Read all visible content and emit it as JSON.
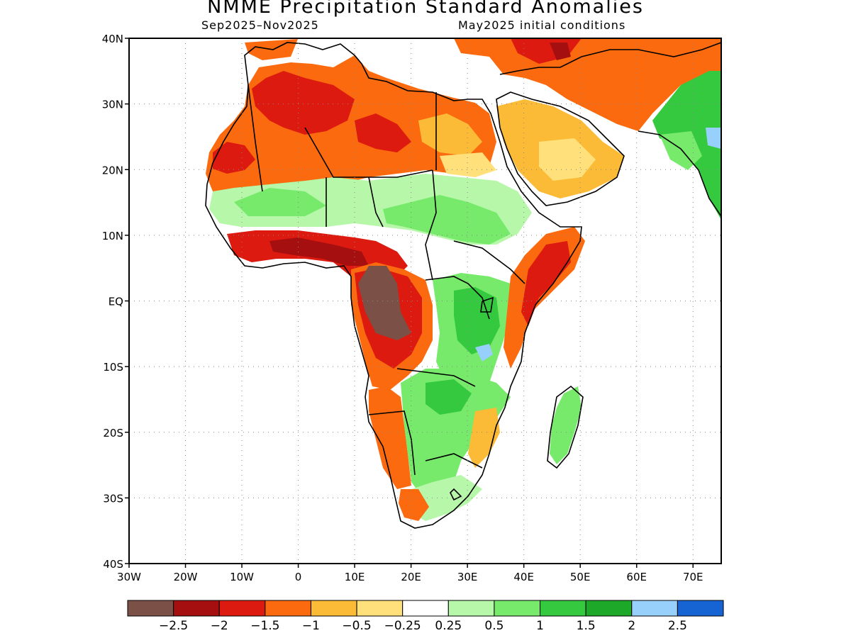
{
  "header": {
    "title": "NMME Precipitation Standard Anomalies",
    "period": "Sep2025–Nov2025",
    "init": "May2025 initial conditions"
  },
  "axes": {
    "lat_labels": [
      "40N",
      "30N",
      "20N",
      "10N",
      "EQ",
      "10S",
      "20S",
      "30S",
      "40S"
    ],
    "lon_labels": [
      "30W",
      "20W",
      "10W",
      "0",
      "10E",
      "20E",
      "30E",
      "40E",
      "50E",
      "60E",
      "70E"
    ],
    "lat_range": [
      -40,
      40
    ],
    "lon_range": [
      -30,
      75
    ],
    "grid": "dotted"
  },
  "colorbar": {
    "labels": [
      "−2.5",
      "−2",
      "−1.5",
      "−1",
      "−0.5",
      "−0.25",
      "0.25",
      "0.5",
      "1",
      "1.5",
      "2",
      "2.5"
    ],
    "colors": [
      "#7b5046",
      "#a50f0f",
      "#dd1a10",
      "#fb6a0e",
      "#fcbb36",
      "#ffe07a",
      "#ffffff",
      "#b7f7aa",
      "#77ea6b",
      "#34c93e",
      "#1ea829",
      "#97d1fb",
      "#1664d4"
    ]
  },
  "map": {
    "region": "Africa",
    "anomaly_regions": [
      {
        "name": "north-africa",
        "level": "-1"
      },
      {
        "name": "gulf-of-guinea",
        "level": "-2"
      },
      {
        "name": "congo-basin",
        "level": "-2.5"
      },
      {
        "name": "east-africa-coast",
        "level": "-2"
      },
      {
        "name": "sahel",
        "level": "0.5"
      },
      {
        "name": "great-lakes",
        "level": "1"
      },
      {
        "name": "southern-africa",
        "level": "0.5"
      },
      {
        "name": "madagascar",
        "level": "0.5"
      },
      {
        "name": "india",
        "level": "1.5"
      }
    ]
  }
}
